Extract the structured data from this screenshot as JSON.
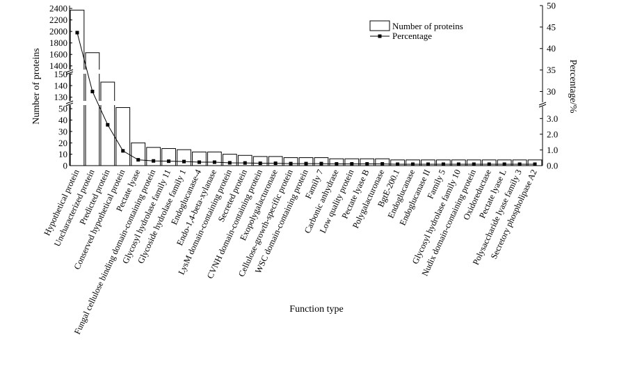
{
  "chart_data": {
    "type": "bar",
    "xlabel": "Function type",
    "ylabel": "Number of proteins",
    "y2label": "Percentage/%",
    "legend": {
      "position": "top-right",
      "entries": [
        "Number of proteins",
        "Percentage"
      ]
    },
    "categories": [
      "Hypothetical protein",
      "Uncharacterized protein",
      "Predicted protein",
      "Conserved hypothetical protein",
      "Pectate lyase",
      "Fungal cellulose binding domain-containing protein",
      "Glycosyl hydrolase family 11",
      "Glycoside hydrolase family 1",
      "Endoglucanase-4",
      "Endo-1,4-beta-xylanase",
      "LysM domain-containing protein",
      "Secreted protein",
      "CVNH domain-containing protein",
      "Exopolygalacturonase",
      "Cellulose-growth-specific protein",
      "WSC domain-containing protein",
      "Family 7",
      "Carbonic anhydrase",
      "Low quality protein",
      "Pectate lyase B",
      "Polygalacturonase",
      "BgtE-200.1",
      "Endoglucanase",
      "Endoglucanase II",
      "Family 5",
      "Glycosyl hydrolase family 10",
      "Nudix domain-containing protein",
      "Oxidoreductase",
      "Pectate lyase L",
      "Polysaccharide lyase family 3",
      "Secretory phospholipase A2"
    ],
    "series": [
      {
        "name": "Number of proteins",
        "type": "bar",
        "axis": "left",
        "values": [
          2370,
          1630,
          143,
          51,
          20,
          16,
          15,
          14,
          12,
          12,
          10,
          9,
          8,
          8,
          7,
          7,
          7,
          6,
          6,
          6,
          6,
          5,
          5,
          5,
          5,
          5,
          5,
          5,
          5,
          5,
          5
        ]
      },
      {
        "name": "Percentage",
        "type": "line",
        "axis": "right",
        "values": [
          43.7,
          30.0,
          2.6,
          0.94,
          0.37,
          0.3,
          0.28,
          0.26,
          0.22,
          0.22,
          0.18,
          0.17,
          0.15,
          0.15,
          0.13,
          0.13,
          0.13,
          0.11,
          0.11,
          0.11,
          0.11,
          0.09,
          0.09,
          0.09,
          0.09,
          0.09,
          0.09,
          0.09,
          0.09,
          0.09,
          0.09
        ]
      }
    ],
    "left_axis": {
      "broken": true,
      "segments": [
        {
          "range": [
            0,
            55
          ],
          "ticks": [
            0,
            10,
            20,
            30,
            40,
            50
          ]
        },
        {
          "range": [
            125,
            152
          ],
          "ticks": [
            130,
            140,
            150
          ]
        },
        {
          "range": [
            1300,
            2450
          ],
          "ticks": [
            1400,
            1600,
            1800,
            2000,
            2200,
            2400
          ]
        }
      ]
    },
    "right_axis": {
      "broken": true,
      "segments": [
        {
          "range": [
            0,
            3.9
          ],
          "ticks": [
            "0.0",
            "1.0",
            "2.0",
            "3.0"
          ]
        },
        {
          "range": [
            27,
            50
          ],
          "ticks": [
            30,
            35,
            40,
            45,
            50
          ]
        }
      ]
    },
    "grid": false
  },
  "colors": {
    "bar_fill": "#ffffff",
    "bar_stroke": "#000000",
    "line": "#000000",
    "marker": "#000000"
  }
}
